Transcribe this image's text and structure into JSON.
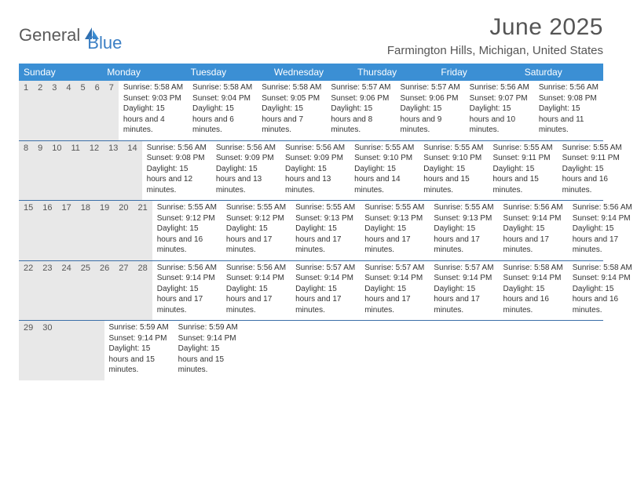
{
  "logo": {
    "text1": "General",
    "text2": "Blue"
  },
  "title": "June 2025",
  "location": "Farmington Hills, Michigan, United States",
  "colors": {
    "header_bg": "#3b8fd4",
    "header_text": "#ffffff",
    "daynum_bg": "#e8e8e8",
    "week_border": "#3b6fa8",
    "logo_blue": "#3b7fc4",
    "logo_gray": "#5a5a5a",
    "text": "#333333"
  },
  "weekdays": [
    "Sunday",
    "Monday",
    "Tuesday",
    "Wednesday",
    "Thursday",
    "Friday",
    "Saturday"
  ],
  "weeks": [
    [
      {
        "n": "1",
        "sr": "5:58 AM",
        "ss": "9:03 PM",
        "dl": "15 hours and 4 minutes."
      },
      {
        "n": "2",
        "sr": "5:58 AM",
        "ss": "9:04 PM",
        "dl": "15 hours and 6 minutes."
      },
      {
        "n": "3",
        "sr": "5:58 AM",
        "ss": "9:05 PM",
        "dl": "15 hours and 7 minutes."
      },
      {
        "n": "4",
        "sr": "5:57 AM",
        "ss": "9:06 PM",
        "dl": "15 hours and 8 minutes."
      },
      {
        "n": "5",
        "sr": "5:57 AM",
        "ss": "9:06 PM",
        "dl": "15 hours and 9 minutes."
      },
      {
        "n": "6",
        "sr": "5:56 AM",
        "ss": "9:07 PM",
        "dl": "15 hours and 10 minutes."
      },
      {
        "n": "7",
        "sr": "5:56 AM",
        "ss": "9:08 PM",
        "dl": "15 hours and 11 minutes."
      }
    ],
    [
      {
        "n": "8",
        "sr": "5:56 AM",
        "ss": "9:08 PM",
        "dl": "15 hours and 12 minutes."
      },
      {
        "n": "9",
        "sr": "5:56 AM",
        "ss": "9:09 PM",
        "dl": "15 hours and 13 minutes."
      },
      {
        "n": "10",
        "sr": "5:56 AM",
        "ss": "9:09 PM",
        "dl": "15 hours and 13 minutes."
      },
      {
        "n": "11",
        "sr": "5:55 AM",
        "ss": "9:10 PM",
        "dl": "15 hours and 14 minutes."
      },
      {
        "n": "12",
        "sr": "5:55 AM",
        "ss": "9:10 PM",
        "dl": "15 hours and 15 minutes."
      },
      {
        "n": "13",
        "sr": "5:55 AM",
        "ss": "9:11 PM",
        "dl": "15 hours and 15 minutes."
      },
      {
        "n": "14",
        "sr": "5:55 AM",
        "ss": "9:11 PM",
        "dl": "15 hours and 16 minutes."
      }
    ],
    [
      {
        "n": "15",
        "sr": "5:55 AM",
        "ss": "9:12 PM",
        "dl": "15 hours and 16 minutes."
      },
      {
        "n": "16",
        "sr": "5:55 AM",
        "ss": "9:12 PM",
        "dl": "15 hours and 17 minutes."
      },
      {
        "n": "17",
        "sr": "5:55 AM",
        "ss": "9:13 PM",
        "dl": "15 hours and 17 minutes."
      },
      {
        "n": "18",
        "sr": "5:55 AM",
        "ss": "9:13 PM",
        "dl": "15 hours and 17 minutes."
      },
      {
        "n": "19",
        "sr": "5:55 AM",
        "ss": "9:13 PM",
        "dl": "15 hours and 17 minutes."
      },
      {
        "n": "20",
        "sr": "5:56 AM",
        "ss": "9:14 PM",
        "dl": "15 hours and 17 minutes."
      },
      {
        "n": "21",
        "sr": "5:56 AM",
        "ss": "9:14 PM",
        "dl": "15 hours and 17 minutes."
      }
    ],
    [
      {
        "n": "22",
        "sr": "5:56 AM",
        "ss": "9:14 PM",
        "dl": "15 hours and 17 minutes."
      },
      {
        "n": "23",
        "sr": "5:56 AM",
        "ss": "9:14 PM",
        "dl": "15 hours and 17 minutes."
      },
      {
        "n": "24",
        "sr": "5:57 AM",
        "ss": "9:14 PM",
        "dl": "15 hours and 17 minutes."
      },
      {
        "n": "25",
        "sr": "5:57 AM",
        "ss": "9:14 PM",
        "dl": "15 hours and 17 minutes."
      },
      {
        "n": "26",
        "sr": "5:57 AM",
        "ss": "9:14 PM",
        "dl": "15 hours and 17 minutes."
      },
      {
        "n": "27",
        "sr": "5:58 AM",
        "ss": "9:14 PM",
        "dl": "15 hours and 16 minutes."
      },
      {
        "n": "28",
        "sr": "5:58 AM",
        "ss": "9:14 PM",
        "dl": "15 hours and 16 minutes."
      }
    ],
    [
      {
        "n": "29",
        "sr": "5:59 AM",
        "ss": "9:14 PM",
        "dl": "15 hours and 15 minutes."
      },
      {
        "n": "30",
        "sr": "5:59 AM",
        "ss": "9:14 PM",
        "dl": "15 hours and 15 minutes."
      },
      null,
      null,
      null,
      null,
      null
    ]
  ],
  "labels": {
    "sunrise": "Sunrise:",
    "sunset": "Sunset:",
    "daylight": "Daylight:"
  }
}
